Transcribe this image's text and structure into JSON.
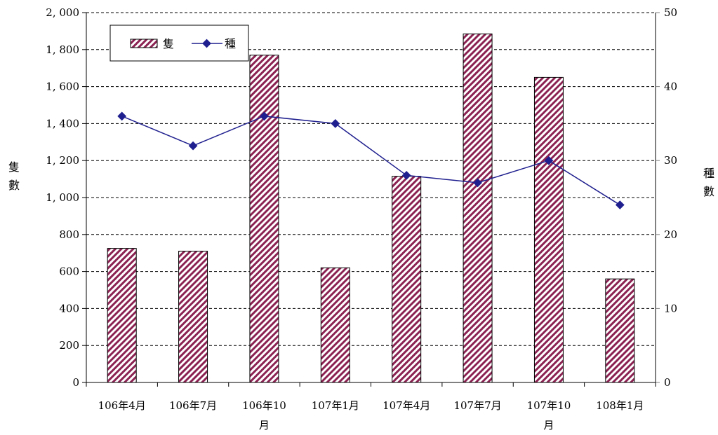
{
  "chart_data": {
    "type": "bar",
    "categories": [
      "106年4月",
      "106年7月",
      "106年10月",
      "107年1月",
      "107年4月",
      "107年7月",
      "107年10月",
      "108年1月"
    ],
    "category_lines": [
      [
        "106年4月"
      ],
      [
        "106年7月"
      ],
      [
        "106年10",
        "月"
      ],
      [
        "107年1月"
      ],
      [
        "107年4月"
      ],
      [
        "107年7月"
      ],
      [
        "107年10",
        "月"
      ],
      [
        "108年1月"
      ]
    ],
    "series": [
      {
        "name": "隻",
        "type": "bar",
        "axis": "left",
        "values": [
          725,
          710,
          1770,
          620,
          1115,
          1885,
          1650,
          560
        ],
        "color": "#8b2252"
      },
      {
        "name": "種",
        "type": "line",
        "axis": "right",
        "values": [
          36,
          32,
          36,
          35,
          28,
          27,
          30,
          24
        ],
        "color": "#1f1f8f"
      }
    ],
    "ylim_left": [
      0,
      2000
    ],
    "ylim_right": [
      0,
      50
    ],
    "yticks_left": [
      "0",
      "200",
      "400",
      "600",
      "800",
      "1, 000",
      "1, 200",
      "1, 400",
      "1, 600",
      "1, 800",
      "2, 000"
    ],
    "yticks_right": [
      "0",
      "10",
      "20",
      "30",
      "40",
      "50"
    ],
    "ylabel_left": "隻數",
    "ylabel_right": "種數",
    "gridlines": true,
    "legend": {
      "position": "top-left",
      "entries": [
        "隻",
        "種"
      ]
    }
  }
}
